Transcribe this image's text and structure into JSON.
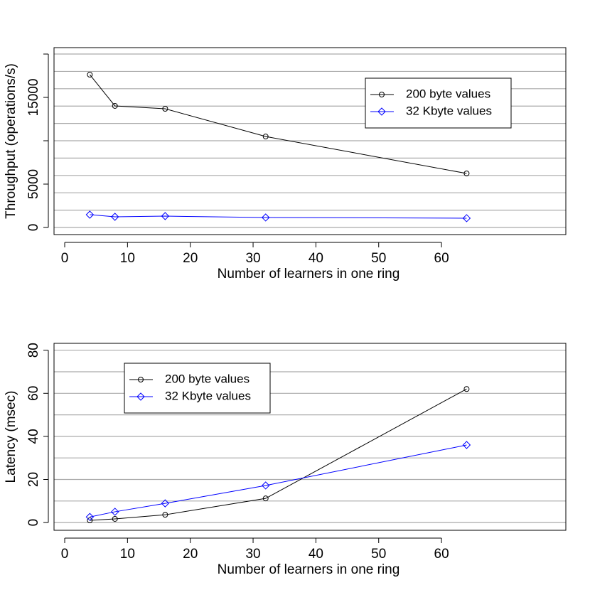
{
  "chart_data": [
    {
      "type": "line",
      "xlabel": "Number of learners in one ring",
      "ylabel": "Throughput (operations/s)",
      "xlim": [
        -1.7,
        79.8
      ],
      "xticks": [
        0,
        10,
        20,
        30,
        40,
        50,
        60
      ],
      "ylim": [
        -820,
        20740
      ],
      "yticks": [
        0,
        5000,
        {
          "value": 10000,
          "label": null
        },
        15000,
        {
          "value": 20000,
          "label": null
        }
      ],
      "grid": [
        0,
        2000,
        4000,
        6000,
        8000,
        10000,
        12000,
        14000,
        16000,
        18000,
        20000
      ],
      "legend": "upper-right",
      "x": [
        4,
        8,
        16,
        32,
        64
      ],
      "series": [
        {
          "name": "200 byte values",
          "color": "#000000",
          "marker": "circle",
          "values": [
            17620,
            14020,
            13690,
            10490,
            6230
          ]
        },
        {
          "name": "32 Kbyte values",
          "color": "#0000ff",
          "marker": "diamond",
          "values": [
            1475,
            1230,
            1310,
            1150,
            1070
          ]
        }
      ]
    },
    {
      "type": "line",
      "xlabel": "Number of learners in one ring",
      "ylabel": "Latency (msec)",
      "xlim": [
        -1.7,
        79.8
      ],
      "xticks": [
        0,
        10,
        20,
        30,
        40,
        50,
        60
      ],
      "ylim": [
        -3.6,
        83.2
      ],
      "yticks": [
        0,
        20,
        40,
        60,
        80
      ],
      "grid": [
        0,
        10,
        20,
        30,
        40,
        50,
        60,
        70,
        80
      ],
      "legend": "upper-left",
      "x": [
        4,
        8,
        16,
        32,
        64
      ],
      "series": [
        {
          "name": "200 byte values",
          "color": "#000000",
          "marker": "circle",
          "values": [
            1,
            1.7,
            3.6,
            11.2,
            62
          ]
        },
        {
          "name": "32 Kbyte values",
          "color": "#0000ff",
          "marker": "diamond",
          "values": [
            2.6,
            5,
            8.9,
            17.2,
            36
          ]
        }
      ]
    }
  ]
}
